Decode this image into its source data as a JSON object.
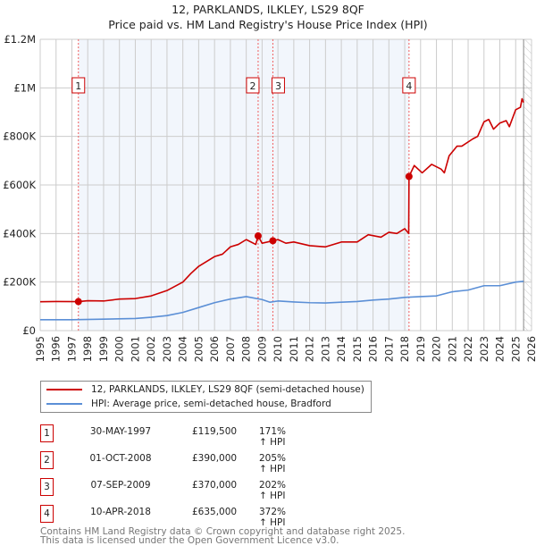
{
  "title": "12, PARKLANDS, ILKLEY, LS29 8QF",
  "subtitle": "Price paid vs. HM Land Registry's House Price Index (HPI)",
  "chart_data": {
    "type": "line",
    "xlim": [
      1995,
      2026
    ],
    "ylim": [
      0,
      1200000
    ],
    "x_ticks": [
      "1995",
      "1996",
      "1997",
      "1998",
      "1999",
      "2000",
      "2001",
      "2002",
      "2003",
      "2004",
      "2005",
      "2006",
      "2007",
      "2008",
      "2009",
      "2010",
      "2011",
      "2012",
      "2013",
      "2014",
      "2015",
      "2016",
      "2017",
      "2018",
      "2019",
      "2020",
      "2021",
      "2022",
      "2023",
      "2024",
      "2025",
      "2026"
    ],
    "y_ticks": [
      {
        "value": 0,
        "label": "£0"
      },
      {
        "value": 200000,
        "label": "£200K"
      },
      {
        "value": 400000,
        "label": "£400K"
      },
      {
        "value": 600000,
        "label": "£600K"
      },
      {
        "value": 800000,
        "label": "£800K"
      },
      {
        "value": 1000000,
        "label": "£1M"
      },
      {
        "value": 1200000,
        "label": "£1.2M"
      }
    ],
    "grid": true,
    "data_end_year": 2025.5,
    "series": [
      {
        "name": "12, PARKLANDS, ILKLEY, LS29 8QF (semi-detached house)",
        "color": "#cc0000",
        "x": [
          1995,
          1996,
          1997.4,
          1998,
          1999,
          2000,
          2001,
          2002,
          2003,
          2004,
          2004.5,
          2005,
          2006,
          2006.5,
          2007,
          2007.5,
          2008,
          2008.6,
          2008.75,
          2009,
          2009.68,
          2010,
          2010.5,
          2011,
          2012,
          2013,
          2014,
          2015,
          2015.7,
          2016.5,
          2017,
          2017.5,
          2018,
          2018.25,
          2018.27,
          2018.6,
          2019.1,
          2019.7,
          2020.3,
          2020.5,
          2020.8,
          2021.3,
          2021.6,
          2022.3,
          2022.6,
          2023,
          2023.3,
          2023.6,
          2024,
          2024.4,
          2024.6,
          2025,
          2025.3,
          2025.4,
          2025.5
        ],
        "y": [
          119000,
          120000,
          119500,
          123000,
          122000,
          130000,
          132000,
          143000,
          165000,
          200000,
          235000,
          265000,
          305000,
          315000,
          345000,
          355000,
          375000,
          355000,
          390000,
          360000,
          370000,
          375000,
          360000,
          365000,
          350000,
          345000,
          365000,
          365000,
          395000,
          385000,
          405000,
          400000,
          420000,
          400000,
          635000,
          680000,
          650000,
          685000,
          665000,
          650000,
          720000,
          760000,
          760000,
          790000,
          800000,
          860000,
          870000,
          830000,
          855000,
          865000,
          840000,
          910000,
          920000,
          955000,
          940000
        ]
      },
      {
        "name": "HPI: Average price, semi-detached house, Bradford",
        "color": "#5b8fd6",
        "x": [
          1995,
          1997,
          1999,
          2001,
          2002,
          2003,
          2004,
          2005,
          2006,
          2007,
          2008,
          2009,
          2009.5,
          2010,
          2011,
          2012,
          2013,
          2014,
          2015,
          2016,
          2017,
          2018,
          2019,
          2020,
          2021,
          2022,
          2023,
          2024,
          2025,
          2025.5
        ],
        "y": [
          45000,
          45000,
          47000,
          50000,
          55000,
          62000,
          75000,
          95000,
          115000,
          130000,
          140000,
          128000,
          117000,
          122000,
          118000,
          115000,
          114000,
          117000,
          120000,
          126000,
          130000,
          137000,
          140000,
          143000,
          160000,
          167000,
          185000,
          185000,
          200000,
          203000
        ]
      }
    ],
    "sales": [
      {
        "label": "1",
        "x": 1997.41,
        "y": 119500
      },
      {
        "label": "2",
        "x": 2008.75,
        "y": 390000
      },
      {
        "label": "3",
        "x": 2009.68,
        "y": 370000
      },
      {
        "label": "4",
        "x": 2018.27,
        "y": 635000
      }
    ],
    "legend": "below"
  },
  "legend": {
    "property": "12, PARKLANDS, ILKLEY, LS29 8QF (semi-detached house)",
    "hpi": "HPI: Average price, semi-detached house, Bradford"
  },
  "transactions": [
    {
      "num": "1",
      "date": "30-MAY-1997",
      "price": "£119,500",
      "hpi": "171% ↑ HPI"
    },
    {
      "num": "2",
      "date": "01-OCT-2008",
      "price": "£390,000",
      "hpi": "205% ↑ HPI"
    },
    {
      "num": "3",
      "date": "07-SEP-2009",
      "price": "£370,000",
      "hpi": "202% ↑ HPI"
    },
    {
      "num": "4",
      "date": "10-APR-2018",
      "price": "£635,000",
      "hpi": "372% ↑ HPI"
    }
  ],
  "footer": {
    "line1": "Contains HM Land Registry data © Crown copyright and database right 2025.",
    "line2": "This data is licensed under the Open Government Licence v3.0."
  }
}
